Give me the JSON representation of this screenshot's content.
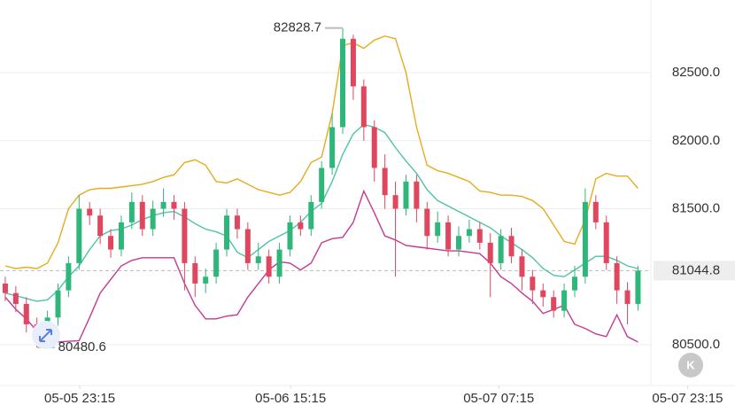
{
  "chart_data": {
    "type": "candlestick",
    "xlim": [
      0,
      69.7
    ],
    "xticks": [
      {
        "value": 7.56,
        "label": "05-05 23:15"
      },
      {
        "value": 27.56,
        "label": "05-06 15:15"
      },
      {
        "value": 47.3,
        "label": "05-07 07:15"
      },
      {
        "value": 65.2,
        "label": "05-07 23:15"
      }
    ],
    "ylim": [
      80200,
      83035
    ],
    "yticks": [
      {
        "value": 80500,
        "label": "80500.0"
      },
      {
        "value": 81500,
        "label": "81500.0"
      },
      {
        "value": 82000,
        "label": "82000.0"
      },
      {
        "value": 82500,
        "label": "82500.0"
      }
    ],
    "grid": true,
    "up_color": "#2fb67a",
    "down_color": "#e0475f",
    "open": [
      80950,
      80880,
      80800,
      80650,
      80530,
      80700,
      80900,
      81100,
      81500,
      81450,
      81300,
      81200,
      81400,
      81550,
      81350,
      81500,
      81550,
      81500,
      81100,
      80950,
      81000,
      81200,
      81450,
      81350,
      81100,
      81150,
      81000,
      81200,
      81400,
      81350,
      81550,
      81800,
      82100,
      82750,
      82400,
      82100,
      81800,
      81600,
      81500,
      81700,
      81500,
      81300,
      81400,
      81200,
      81300,
      81350,
      81250,
      81100,
      81300,
      81150,
      81000,
      80900,
      80850,
      80750,
      80900,
      81000,
      81550,
      81400,
      81100,
      80900,
      80800
    ],
    "high": [
      81000,
      80930,
      80850,
      80700,
      80750,
      80950,
      81150,
      81600,
      81550,
      81500,
      81350,
      81450,
      81620,
      81600,
      81560,
      81650,
      81600,
      81550,
      81150,
      81060,
      81250,
      81500,
      81500,
      81400,
      81250,
      81200,
      81250,
      81450,
      81450,
      81600,
      81850,
      82200,
      82828.7,
      82780,
      82450,
      82150,
      81900,
      81700,
      81750,
      81750,
      81550,
      81480,
      81450,
      81370,
      81420,
      81400,
      81320,
      81350,
      81360,
      81200,
      81050,
      80950,
      80900,
      80950,
      81080,
      81650,
      81600,
      81450,
      81150,
      80960,
      81080
    ],
    "low": [
      80820,
      80740,
      80590,
      80480.6,
      80500,
      80640,
      80850,
      81050,
      81380,
      81240,
      81140,
      81150,
      81350,
      81300,
      81300,
      81440,
      81420,
      80900,
      80850,
      80880,
      80950,
      81150,
      81280,
      81050,
      81050,
      80950,
      80950,
      81150,
      81300,
      81300,
      81500,
      81750,
      82050,
      82300,
      82000,
      81700,
      81500,
      81000,
      81450,
      81400,
      81200,
      81250,
      81150,
      81150,
      81250,
      81200,
      80850,
      81050,
      81100,
      80900,
      80800,
      80780,
      80700,
      80700,
      80850,
      80950,
      81350,
      81050,
      80800,
      80650,
      80750
    ],
    "close": [
      80880,
      80800,
      80650,
      80530,
      80700,
      80900,
      81100,
      81500,
      81450,
      81300,
      81200,
      81400,
      81550,
      81350,
      81500,
      81550,
      81500,
      81100,
      80950,
      81000,
      81200,
      81450,
      81350,
      81100,
      81150,
      81000,
      81200,
      81400,
      81350,
      81550,
      81800,
      82100,
      82750,
      82400,
      82100,
      81800,
      81600,
      81500,
      81700,
      81500,
      81300,
      81400,
      81200,
      81300,
      81350,
      81250,
      81100,
      81300,
      81150,
      81000,
      80900,
      80850,
      80750,
      80900,
      81000,
      81550,
      81400,
      81100,
      80900,
      80800,
      81044.8
    ],
    "overlays": [
      {
        "color": "#e5ac1f",
        "values": [
          81080,
          81060,
          81070,
          81060,
          81100,
          81250,
          81500,
          81600,
          81640,
          81650,
          81650,
          81660,
          81670,
          81680,
          81700,
          81730,
          81750,
          81840,
          81860,
          81820,
          81700,
          81690,
          81720,
          81680,
          81640,
          81620,
          81600,
          81620,
          81700,
          81840,
          81880,
          82200,
          82700,
          82720,
          82680,
          82740,
          82770,
          82750,
          82500,
          82100,
          81820,
          81780,
          81760,
          81730,
          81700,
          81630,
          81620,
          81600,
          81600,
          81590,
          81560,
          81500,
          81380,
          81260,
          81240,
          81420,
          81720,
          81760,
          81740,
          81740,
          81650
        ]
      },
      {
        "color": "#4fc3a8",
        "values": [
          80880,
          80860,
          80840,
          80820,
          80830,
          80900,
          81000,
          81080,
          81200,
          81300,
          81340,
          81350,
          81380,
          81420,
          81450,
          81470,
          81480,
          81440,
          81390,
          81350,
          81330,
          81300,
          81180,
          81140,
          81200,
          81260,
          81300,
          81340,
          81400,
          81480,
          81540,
          81700,
          81900,
          82050,
          82120,
          82100,
          82060,
          81950,
          81850,
          81760,
          81640,
          81560,
          81520,
          81480,
          81440,
          81400,
          81360,
          81300,
          81250,
          81200,
          81140,
          81060,
          81010,
          81000,
          81050,
          81100,
          81150,
          81150,
          81120,
          81080,
          81060
        ]
      },
      {
        "color": "#c23a92",
        "values": [
          80850,
          80760,
          80690,
          80600,
          80530,
          80520,
          80525,
          80530,
          80700,
          80880,
          80980,
          81080,
          81120,
          81140,
          81140,
          81140,
          81140,
          80950,
          80790,
          80690,
          80690,
          80710,
          80720,
          80850,
          80950,
          81050,
          81110,
          81100,
          81050,
          81100,
          81250,
          81280,
          81290,
          81400,
          81630,
          81470,
          81300,
          81270,
          81230,
          81220,
          81210,
          81200,
          81190,
          81190,
          81180,
          81170,
          81100,
          81000,
          80950,
          80880,
          80820,
          80730,
          80760,
          80790,
          80650,
          80620,
          80580,
          80560,
          80720,
          80560,
          80520
        ]
      }
    ],
    "last_price": 81044.8,
    "max_marker": 82828.7,
    "min_marker": 80480.6
  },
  "controls": {
    "reset_label": "K"
  }
}
